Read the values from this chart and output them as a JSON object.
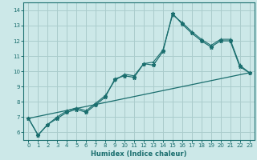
{
  "title": "",
  "xlabel": "Humidex (Indice chaleur)",
  "bg_color": "#cce8e8",
  "grid_color": "#aacccc",
  "line_color": "#1a6e6e",
  "xlim": [
    -0.5,
    23.5
  ],
  "ylim": [
    5.5,
    14.5
  ],
  "xticks": [
    0,
    1,
    2,
    3,
    4,
    5,
    6,
    7,
    8,
    9,
    10,
    11,
    12,
    13,
    14,
    15,
    16,
    17,
    18,
    19,
    20,
    21,
    22,
    23
  ],
  "yticks": [
    6,
    7,
    8,
    9,
    10,
    11,
    12,
    13,
    14
  ],
  "line1_x": [
    0,
    1,
    2,
    3,
    4,
    5,
    6,
    7,
    8,
    9,
    10,
    11,
    12,
    13,
    14,
    15,
    16,
    17,
    18,
    19,
    20,
    21,
    22,
    23
  ],
  "line1_y": [
    6.9,
    5.8,
    6.5,
    6.9,
    7.3,
    7.5,
    7.3,
    7.8,
    8.3,
    9.5,
    9.7,
    9.6,
    10.5,
    10.4,
    11.3,
    13.8,
    13.1,
    12.5,
    12.0,
    11.6,
    12.0,
    12.0,
    10.3,
    9.9
  ],
  "line2_y": [
    6.9,
    5.8,
    6.5,
    7.0,
    7.4,
    7.6,
    7.4,
    7.9,
    8.4,
    9.4,
    9.8,
    9.7,
    10.5,
    10.6,
    11.4,
    13.7,
    13.2,
    12.6,
    12.1,
    11.7,
    12.1,
    12.1,
    10.4,
    9.9
  ],
  "line3_x": [
    0,
    23
  ],
  "line3_y": [
    6.9,
    9.9
  ]
}
